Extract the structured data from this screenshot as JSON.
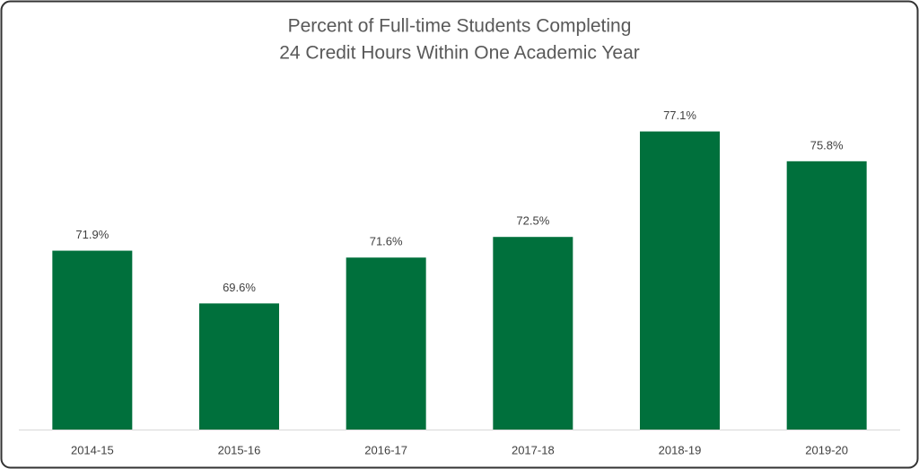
{
  "chart_data": {
    "type": "bar",
    "title": [
      "Percent of Full-time Students Completing",
      "24 Credit Hours Within One Academic Year"
    ],
    "categories": [
      "2014-15",
      "2015-16",
      "2016-17",
      "2017-18",
      "2018-19",
      "2019-20"
    ],
    "values": [
      71.9,
      69.6,
      71.6,
      72.5,
      77.1,
      75.8
    ],
    "value_labels": [
      "71.9%",
      "69.6%",
      "71.6%",
      "72.5%",
      "77.1%",
      "75.8%"
    ],
    "color": "#00703c",
    "ylim": [
      64.1,
      79
    ]
  }
}
